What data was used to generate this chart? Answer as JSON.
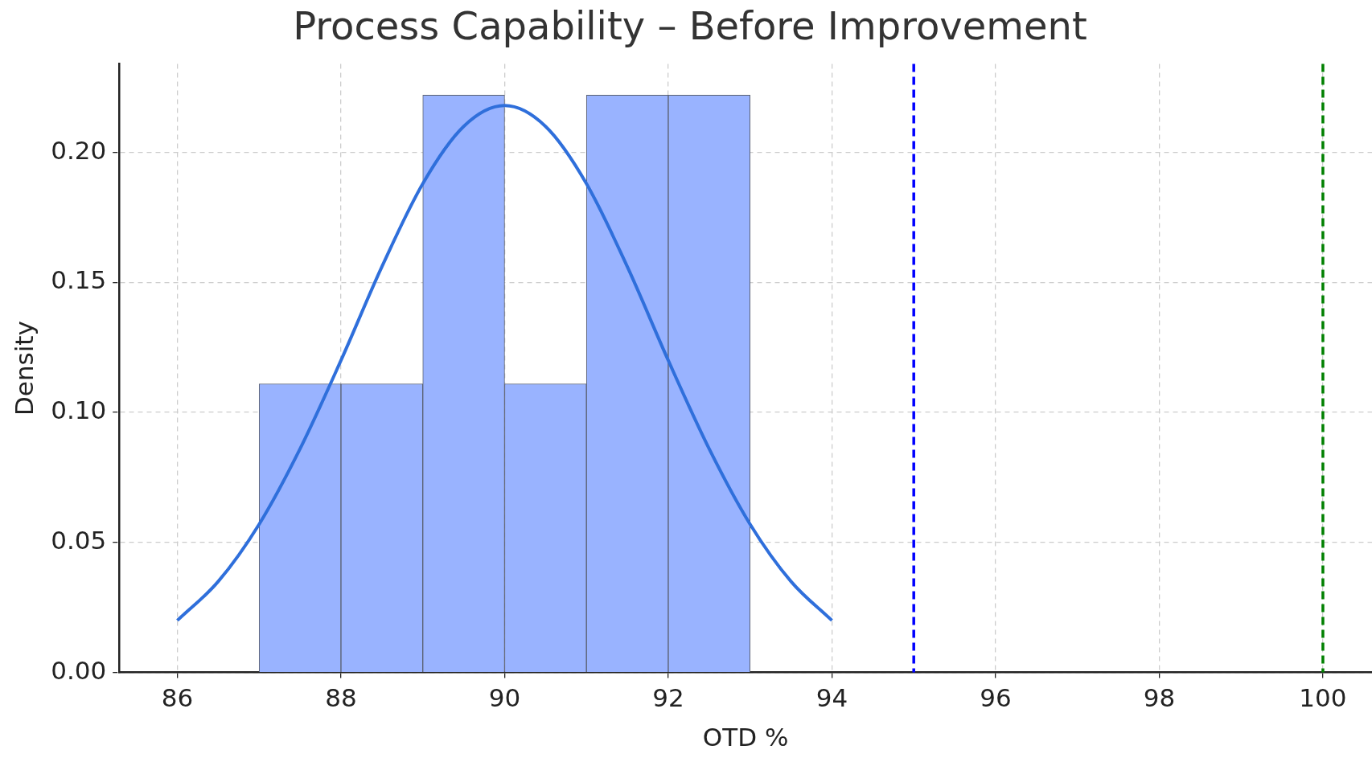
{
  "chart_data": {
    "type": "histogram",
    "title": "Process Capability – Before Improvement",
    "xlabel": "OTD %",
    "ylabel": "Density",
    "bins": [
      87,
      88,
      89,
      90,
      91,
      92,
      93
    ],
    "values": [
      0.111,
      0.111,
      0.222,
      0.111,
      0.222,
      0.222
    ],
    "color": "#99b3ff",
    "series": [
      {
        "type": "line",
        "color": "#2f6fdb",
        "x": [
          86,
          86.5,
          87,
          87.5,
          88,
          88.5,
          89,
          89.5,
          90,
          90.5,
          91,
          91.5,
          92,
          92.5,
          93,
          93.5,
          94
        ],
        "values": [
          0.02,
          0.035,
          0.057,
          0.086,
          0.12,
          0.156,
          0.188,
          0.21,
          0.218,
          0.21,
          0.188,
          0.156,
          0.12,
          0.086,
          0.057,
          0.035,
          0.02
        ]
      }
    ],
    "ref_lines": [
      {
        "axis": "x",
        "value": 95,
        "color": "#0000ff",
        "line_style": "dashed"
      },
      {
        "axis": "x",
        "value": 100,
        "color": "#008000",
        "line_style": "dashed"
      }
    ],
    "xlim": [
      85.29,
      100.6
    ],
    "ylim": [
      0,
      0.234
    ],
    "xticks": [
      86,
      88,
      90,
      92,
      94,
      96,
      98,
      100
    ],
    "yticks": [
      {
        "value": 0,
        "label": "0.00"
      },
      {
        "value": 0.05,
        "label": "0.05"
      },
      {
        "value": 0.1,
        "label": "0.10"
      },
      {
        "value": 0.15,
        "label": "0.15"
      },
      {
        "value": 0.2,
        "label": "0.20"
      }
    ],
    "grid": true
  }
}
